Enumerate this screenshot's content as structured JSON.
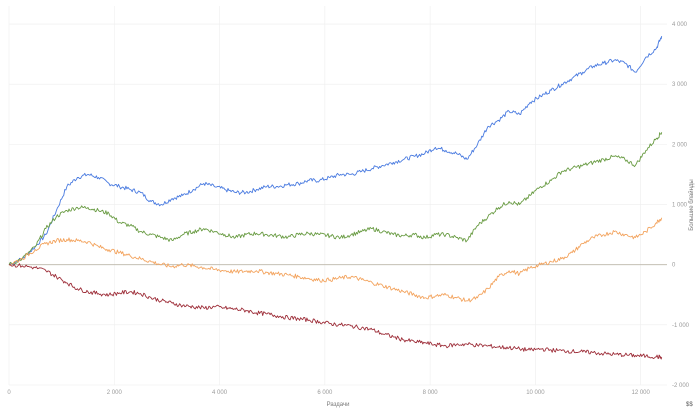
{
  "chart_data": {
    "type": "line",
    "xlabel": "Раздачи",
    "ylabel": "Большие блайнды",
    "corner_label": "$$",
    "xlim": [
      0,
      12500
    ],
    "ylim": [
      -2000,
      4300
    ],
    "x_ticks": [
      0,
      2000,
      4000,
      6000,
      8000,
      10000,
      12000
    ],
    "x_tick_labels": [
      "0",
      "2 000",
      "4 000",
      "6 000",
      "8 000",
      "10 000",
      "12 000"
    ],
    "y_ticks": [
      -2000,
      -1000,
      0,
      1000,
      2000,
      3000,
      4000
    ],
    "y_tick_labels": [
      "-2 000",
      "-1 000",
      "0",
      "1 000",
      "2 000",
      "3 000",
      "4 000"
    ],
    "grid": true,
    "legend": "none",
    "colors": {
      "zero_line": "#bdb7a9",
      "grid": "#eeeeee"
    },
    "series": [
      {
        "color": "#4a7be0",
        "points": [
          [
            0,
            0
          ],
          [
            250,
            100
          ],
          [
            500,
            300
          ],
          [
            700,
            500
          ],
          [
            900,
            900
          ],
          [
            1100,
            1300
          ],
          [
            1300,
            1450
          ],
          [
            1500,
            1500
          ],
          [
            1700,
            1450
          ],
          [
            1900,
            1350
          ],
          [
            2100,
            1300
          ],
          [
            2300,
            1250
          ],
          [
            2500,
            1200
          ],
          [
            2700,
            1050
          ],
          [
            2900,
            1000
          ],
          [
            3100,
            1100
          ],
          [
            3300,
            1150
          ],
          [
            3500,
            1250
          ],
          [
            3700,
            1350
          ],
          [
            3900,
            1300
          ],
          [
            4100,
            1250
          ],
          [
            4300,
            1200
          ],
          [
            4500,
            1200
          ],
          [
            4700,
            1250
          ],
          [
            4900,
            1300
          ],
          [
            5100,
            1300
          ],
          [
            5300,
            1330
          ],
          [
            5500,
            1350
          ],
          [
            5700,
            1400
          ],
          [
            5900,
            1400
          ],
          [
            6100,
            1450
          ],
          [
            6300,
            1500
          ],
          [
            6500,
            1500
          ],
          [
            6700,
            1550
          ],
          [
            6900,
            1600
          ],
          [
            7100,
            1650
          ],
          [
            7300,
            1700
          ],
          [
            7500,
            1750
          ],
          [
            7700,
            1800
          ],
          [
            7900,
            1850
          ],
          [
            8100,
            1950
          ],
          [
            8300,
            1900
          ],
          [
            8500,
            1850
          ],
          [
            8700,
            1750
          ],
          [
            8900,
            2000
          ],
          [
            9100,
            2300
          ],
          [
            9300,
            2400
          ],
          [
            9500,
            2550
          ],
          [
            9700,
            2500
          ],
          [
            9900,
            2700
          ],
          [
            10100,
            2800
          ],
          [
            10300,
            2900
          ],
          [
            10500,
            3000
          ],
          [
            10700,
            3100
          ],
          [
            10900,
            3200
          ],
          [
            11100,
            3300
          ],
          [
            11300,
            3350
          ],
          [
            11500,
            3400
          ],
          [
            11700,
            3350
          ],
          [
            11900,
            3200
          ],
          [
            12100,
            3450
          ],
          [
            12300,
            3600
          ],
          [
            12400,
            3800
          ]
        ]
      },
      {
        "color": "#6a9c44",
        "points": [
          [
            0,
            0
          ],
          [
            250,
            100
          ],
          [
            500,
            300
          ],
          [
            700,
            600
          ],
          [
            900,
            800
          ],
          [
            1100,
            900
          ],
          [
            1300,
            950
          ],
          [
            1500,
            950
          ],
          [
            1700,
            900
          ],
          [
            1900,
            850
          ],
          [
            2100,
            700
          ],
          [
            2300,
            650
          ],
          [
            2500,
            550
          ],
          [
            2700,
            500
          ],
          [
            2900,
            450
          ],
          [
            3100,
            400
          ],
          [
            3300,
            500
          ],
          [
            3500,
            550
          ],
          [
            3700,
            600
          ],
          [
            3900,
            550
          ],
          [
            4100,
            500
          ],
          [
            4300,
            450
          ],
          [
            4500,
            500
          ],
          [
            4700,
            520
          ],
          [
            4900,
            500
          ],
          [
            5100,
            480
          ],
          [
            5300,
            460
          ],
          [
            5500,
            500
          ],
          [
            5700,
            520
          ],
          [
            5900,
            500
          ],
          [
            6100,
            480
          ],
          [
            6300,
            450
          ],
          [
            6500,
            500
          ],
          [
            6700,
            550
          ],
          [
            6900,
            600
          ],
          [
            7100,
            550
          ],
          [
            7300,
            500
          ],
          [
            7500,
            480
          ],
          [
            7700,
            500
          ],
          [
            7900,
            450
          ],
          [
            8100,
            500
          ],
          [
            8300,
            500
          ],
          [
            8500,
            450
          ],
          [
            8700,
            400
          ],
          [
            8900,
            650
          ],
          [
            9100,
            800
          ],
          [
            9300,
            950
          ],
          [
            9500,
            1050
          ],
          [
            9700,
            1000
          ],
          [
            9900,
            1150
          ],
          [
            10100,
            1300
          ],
          [
            10300,
            1400
          ],
          [
            10500,
            1550
          ],
          [
            10700,
            1600
          ],
          [
            10900,
            1650
          ],
          [
            11100,
            1700
          ],
          [
            11300,
            1750
          ],
          [
            11500,
            1800
          ],
          [
            11700,
            1750
          ],
          [
            11900,
            1650
          ],
          [
            12100,
            1900
          ],
          [
            12300,
            2100
          ],
          [
            12400,
            2200
          ]
        ]
      },
      {
        "color": "#f3a45f",
        "points": [
          [
            0,
            0
          ],
          [
            250,
            100
          ],
          [
            500,
            250
          ],
          [
            700,
            350
          ],
          [
            900,
            400
          ],
          [
            1100,
            420
          ],
          [
            1300,
            400
          ],
          [
            1500,
            380
          ],
          [
            1700,
            300
          ],
          [
            1900,
            250
          ],
          [
            2100,
            200
          ],
          [
            2300,
            150
          ],
          [
            2500,
            100
          ],
          [
            2700,
            50
          ],
          [
            2900,
            0
          ],
          [
            3100,
            -30
          ],
          [
            3300,
            0
          ],
          [
            3500,
            -20
          ],
          [
            3700,
            -50
          ],
          [
            3900,
            -80
          ],
          [
            4100,
            -100
          ],
          [
            4300,
            -120
          ],
          [
            4500,
            -110
          ],
          [
            4700,
            -100
          ],
          [
            4900,
            -130
          ],
          [
            5100,
            -150
          ],
          [
            5300,
            -170
          ],
          [
            5500,
            -200
          ],
          [
            5700,
            -230
          ],
          [
            5900,
            -260
          ],
          [
            6100,
            -250
          ],
          [
            6300,
            -220
          ],
          [
            6500,
            -200
          ],
          [
            6700,
            -250
          ],
          [
            6900,
            -300
          ],
          [
            7100,
            -350
          ],
          [
            7300,
            -400
          ],
          [
            7500,
            -450
          ],
          [
            7700,
            -500
          ],
          [
            7900,
            -550
          ],
          [
            8100,
            -520
          ],
          [
            8300,
            -500
          ],
          [
            8500,
            -550
          ],
          [
            8700,
            -600
          ],
          [
            8900,
            -550
          ],
          [
            9100,
            -400
          ],
          [
            9300,
            -200
          ],
          [
            9500,
            -100
          ],
          [
            9700,
            -150
          ],
          [
            9900,
            -50
          ],
          [
            10100,
            0
          ],
          [
            10300,
            50
          ],
          [
            10500,
            100
          ],
          [
            10700,
            200
          ],
          [
            10900,
            350
          ],
          [
            11100,
            450
          ],
          [
            11300,
            500
          ],
          [
            11500,
            550
          ],
          [
            11700,
            500
          ],
          [
            11900,
            450
          ],
          [
            12100,
            550
          ],
          [
            12300,
            700
          ],
          [
            12400,
            780
          ]
        ]
      },
      {
        "color": "#9e2f3a",
        "points": [
          [
            0,
            0
          ],
          [
            250,
            -20
          ],
          [
            500,
            -50
          ],
          [
            700,
            -100
          ],
          [
            900,
            -200
          ],
          [
            1100,
            -300
          ],
          [
            1300,
            -400
          ],
          [
            1500,
            -450
          ],
          [
            1700,
            -480
          ],
          [
            1900,
            -500
          ],
          [
            2100,
            -470
          ],
          [
            2300,
            -450
          ],
          [
            2500,
            -480
          ],
          [
            2700,
            -550
          ],
          [
            2900,
            -600
          ],
          [
            3100,
            -640
          ],
          [
            3300,
            -680
          ],
          [
            3500,
            -700
          ],
          [
            3700,
            -720
          ],
          [
            3900,
            -700
          ],
          [
            4100,
            -720
          ],
          [
            4300,
            -740
          ],
          [
            4500,
            -760
          ],
          [
            4700,
            -800
          ],
          [
            4900,
            -820
          ],
          [
            5100,
            -850
          ],
          [
            5300,
            -880
          ],
          [
            5500,
            -900
          ],
          [
            5700,
            -920
          ],
          [
            5900,
            -950
          ],
          [
            6100,
            -980
          ],
          [
            6300,
            -1000
          ],
          [
            6500,
            -1020
          ],
          [
            6700,
            -1050
          ],
          [
            6900,
            -1080
          ],
          [
            7100,
            -1150
          ],
          [
            7300,
            -1200
          ],
          [
            7500,
            -1250
          ],
          [
            7700,
            -1280
          ],
          [
            7900,
            -1300
          ],
          [
            8100,
            -1330
          ],
          [
            8300,
            -1350
          ],
          [
            8500,
            -1330
          ],
          [
            8700,
            -1320
          ],
          [
            8900,
            -1340
          ],
          [
            9100,
            -1350
          ],
          [
            9300,
            -1370
          ],
          [
            9500,
            -1380
          ],
          [
            9700,
            -1400
          ],
          [
            9900,
            -1420
          ],
          [
            10100,
            -1400
          ],
          [
            10300,
            -1420
          ],
          [
            10500,
            -1430
          ],
          [
            10700,
            -1440
          ],
          [
            10900,
            -1450
          ],
          [
            11100,
            -1460
          ],
          [
            11300,
            -1480
          ],
          [
            11500,
            -1490
          ],
          [
            11700,
            -1500
          ],
          [
            11900,
            -1510
          ],
          [
            12100,
            -1520
          ],
          [
            12300,
            -1530
          ],
          [
            12400,
            -1540
          ]
        ]
      }
    ]
  }
}
